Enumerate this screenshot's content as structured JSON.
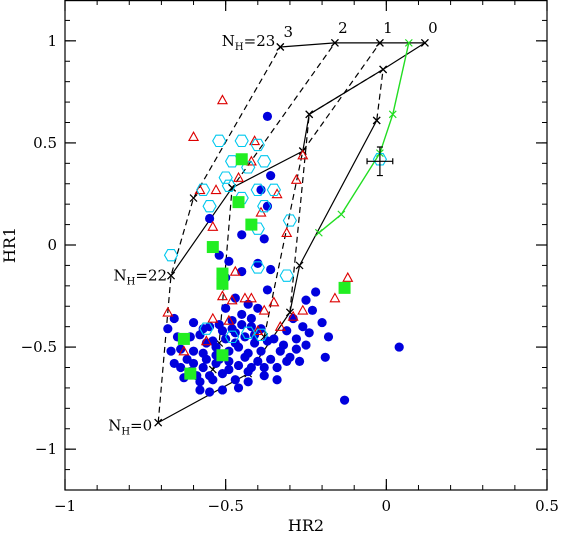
{
  "chart_data": {
    "type": "scatter",
    "xlabel": "HR2",
    "ylabel": "HR1",
    "xlim": [
      -1,
      0.5
    ],
    "ylim": [
      -1.2,
      1.2
    ],
    "xticks": [
      -1,
      -0.5,
      0,
      0.5
    ],
    "xtick_labels": [
      "−1",
      "−0.5",
      "0",
      "0.5"
    ],
    "yticks": [
      -1,
      -0.5,
      0,
      0.5,
      1
    ],
    "ytick_labels": [
      "−1",
      "−0.5",
      "0",
      "0.5",
      "1"
    ],
    "grid": false,
    "grid_annotations": {
      "nh_low": {
        "text": "N",
        "sub": "H",
        "value": "=0",
        "at": [
          -0.71,
          -0.87
        ]
      },
      "nh_mid": {
        "text": "N",
        "sub": "H",
        "value": "=22",
        "at": [
          -0.67,
          -0.15
        ]
      },
      "nh_high": {
        "text": "N",
        "sub": "H",
        "value": "=23",
        "at": [
          -0.33,
          0.97
        ]
      },
      "gamma_labels": [
        {
          "text": "3",
          "at": [
            -0.33,
            0.97
          ]
        },
        {
          "text": "2",
          "at": [
            -0.16,
            0.99
          ]
        },
        {
          "text": "1",
          "at": [
            -0.02,
            0.99
          ]
        },
        {
          "text": "0",
          "at": [
            0.12,
            0.99
          ]
        }
      ]
    },
    "solid_tracks": [
      [
        [
          -0.71,
          -0.87
        ],
        [
          -0.43,
          -0.63
        ],
        [
          -0.3,
          -0.33
        ],
        [
          -0.27,
          -0.1
        ],
        [
          -0.03,
          0.61
        ]
      ],
      [
        [
          -0.67,
          -0.15
        ],
        [
          -0.48,
          0.28
        ],
        [
          -0.26,
          0.46
        ],
        [
          -0.24,
          0.64
        ],
        [
          -0.01,
          0.86
        ],
        [
          0.12,
          0.99
        ]
      ]
    ],
    "dashed_tracks": [
      [
        [
          -0.71,
          -0.87
        ],
        [
          -0.67,
          -0.15
        ],
        [
          -0.6,
          0.23
        ],
        [
          -0.33,
          0.97
        ]
      ],
      [
        [
          -0.54,
          -0.61
        ],
        [
          -0.52,
          -0.48
        ],
        [
          -0.48,
          0.28
        ],
        [
          -0.16,
          0.99
        ]
      ],
      [
        [
          -0.38,
          -0.45
        ],
        [
          -0.26,
          0.46
        ],
        [
          -0.02,
          0.99
        ]
      ],
      [
        [
          -0.3,
          -0.33
        ],
        [
          -0.24,
          0.64
        ],
        [
          -0.01,
          0.86
        ],
        [
          -0.03,
          0.61
        ]
      ]
    ],
    "solid_track_top": [
      [
        -0.33,
        0.97
      ],
      [
        -0.16,
        0.99
      ],
      [
        -0.02,
        0.99
      ],
      [
        0.12,
        0.99
      ]
    ],
    "green_track": [
      [
        -0.21,
        0.06
      ],
      [
        -0.14,
        0.15
      ],
      [
        -0.02,
        0.45
      ],
      [
        0.02,
        0.64
      ],
      [
        0.07,
        0.99
      ]
    ],
    "error_point": {
      "x": -0.02,
      "y": 0.41,
      "xerr": 0.04,
      "yerr": 0.07
    },
    "series": [
      {
        "marker": "filled-circle",
        "color": "#0000dd",
        "points": [
          [
            -0.59,
            -0.64
          ],
          [
            -0.57,
            -0.6
          ],
          [
            -0.53,
            -0.58
          ],
          [
            -0.49,
            -0.57
          ],
          [
            -0.46,
            -0.59
          ],
          [
            -0.43,
            -0.62
          ],
          [
            -0.62,
            -0.56
          ],
          [
            -0.6,
            -0.52
          ],
          [
            -0.56,
            -0.48
          ],
          [
            -0.53,
            -0.5
          ],
          [
            -0.5,
            -0.46
          ],
          [
            -0.47,
            -0.43
          ],
          [
            -0.44,
            -0.45
          ],
          [
            -0.41,
            -0.48
          ],
          [
            -0.39,
            -0.52
          ],
          [
            -0.36,
            -0.56
          ],
          [
            -0.58,
            -0.44
          ],
          [
            -0.55,
            -0.4
          ],
          [
            -0.52,
            -0.39
          ],
          [
            -0.48,
            -0.37
          ],
          [
            -0.45,
            -0.34
          ],
          [
            -0.42,
            -0.36
          ],
          [
            -0.39,
            -0.41
          ],
          [
            -0.35,
            -0.46
          ],
          [
            -0.32,
            -0.49
          ],
          [
            -0.61,
            -0.45
          ],
          [
            -0.64,
            -0.51
          ],
          [
            -0.66,
            -0.58
          ],
          [
            -0.63,
            -0.65
          ],
          [
            -0.58,
            -0.67
          ],
          [
            -0.54,
            -0.66
          ],
          [
            -0.51,
            -0.63
          ],
          [
            -0.47,
            -0.66
          ],
          [
            -0.43,
            -0.67
          ],
          [
            -0.38,
            -0.64
          ],
          [
            -0.34,
            -0.6
          ],
          [
            -0.3,
            -0.55
          ],
          [
            -0.28,
            -0.46
          ],
          [
            -0.26,
            -0.4
          ],
          [
            -0.23,
            -0.32
          ],
          [
            -0.22,
            -0.23
          ],
          [
            -0.25,
            -0.27
          ],
          [
            -0.29,
            -0.36
          ],
          [
            -0.31,
            -0.42
          ],
          [
            -0.56,
            -0.56
          ],
          [
            -0.53,
            -0.54
          ],
          [
            -0.49,
            -0.52
          ],
          [
            -0.46,
            -0.5
          ],
          [
            -0.43,
            -0.53
          ],
          [
            -0.4,
            -0.57
          ],
          [
            -0.38,
            -0.6
          ],
          [
            -0.68,
            -0.41
          ],
          [
            -0.66,
            -0.36
          ],
          [
            -0.6,
            -0.38
          ],
          [
            -0.5,
            -0.31
          ],
          [
            -0.47,
            -0.26
          ],
          [
            -0.43,
            -0.29
          ],
          [
            -0.4,
            -0.31
          ],
          [
            -0.37,
            -0.22
          ],
          [
            -0.36,
            -0.12
          ],
          [
            -0.4,
            -0.09
          ],
          [
            -0.45,
            -0.13
          ],
          [
            -0.5,
            -0.16
          ],
          [
            -0.38,
            0.03
          ],
          [
            -0.37,
            0.19
          ],
          [
            -0.39,
            0.27
          ],
          [
            -0.36,
            0.34
          ],
          [
            -0.37,
            0.63
          ],
          [
            -0.55,
            0.13
          ],
          [
            -0.52,
            -0.05
          ],
          [
            -0.49,
            -0.08
          ],
          [
            -0.45,
            0.05
          ],
          [
            -0.58,
            -0.71
          ],
          [
            -0.55,
            -0.72
          ],
          [
            -0.51,
            -0.71
          ],
          [
            -0.46,
            -0.7
          ],
          [
            -0.34,
            -0.66
          ],
          [
            -0.27,
            -0.57
          ],
          [
            -0.19,
            -0.55
          ],
          [
            -0.18,
            -0.45
          ],
          [
            -0.2,
            -0.38
          ],
          [
            -0.13,
            -0.76
          ],
          [
            0.04,
            -0.5
          ],
          [
            -0.61,
            -0.62
          ],
          [
            -0.64,
            -0.6
          ],
          [
            -0.67,
            -0.52
          ],
          [
            -0.65,
            -0.45
          ],
          [
            -0.57,
            -0.41
          ],
          [
            -0.54,
            -0.47
          ],
          [
            -0.51,
            -0.42
          ],
          [
            -0.48,
            -0.41
          ],
          [
            -0.45,
            -0.39
          ],
          [
            -0.42,
            -0.4
          ],
          [
            -0.41,
            -0.44
          ],
          [
            -0.37,
            -0.47
          ],
          [
            -0.33,
            -0.52
          ],
          [
            -0.31,
            -0.57
          ],
          [
            -0.28,
            -0.51
          ],
          [
            -0.25,
            -0.49
          ],
          [
            -0.24,
            -0.43
          ],
          [
            -0.55,
            -0.64
          ],
          [
            -0.49,
            -0.61
          ],
          [
            -0.44,
            -0.55
          ],
          [
            -0.42,
            -0.6
          ],
          [
            -0.47,
            -0.48
          ],
          [
            -0.52,
            -0.56
          ],
          [
            -0.57,
            -0.53
          ],
          [
            -0.6,
            -0.58
          ]
        ]
      },
      {
        "marker": "open-triangle",
        "color": "#dd0000",
        "points": [
          [
            -0.51,
            0.71
          ],
          [
            -0.6,
            0.53
          ],
          [
            -0.41,
            0.51
          ],
          [
            -0.26,
            0.44
          ],
          [
            -0.58,
            0.27
          ],
          [
            -0.53,
            0.27
          ],
          [
            -0.42,
            0.41
          ],
          [
            -0.46,
            0.33
          ],
          [
            -0.39,
            0.16
          ],
          [
            -0.31,
            0.06
          ],
          [
            -0.54,
            0.09
          ],
          [
            -0.47,
            -0.13
          ],
          [
            -0.44,
            -0.26
          ],
          [
            -0.51,
            -0.25
          ],
          [
            -0.48,
            -0.27
          ],
          [
            -0.42,
            -0.26
          ],
          [
            -0.38,
            -0.32
          ],
          [
            -0.35,
            -0.28
          ],
          [
            -0.26,
            -0.32
          ],
          [
            -0.16,
            -0.26
          ],
          [
            -0.12,
            -0.16
          ],
          [
            -0.68,
            -0.33
          ],
          [
            -0.63,
            -0.52
          ],
          [
            -0.56,
            -0.47
          ],
          [
            -0.54,
            -0.36
          ],
          [
            -0.49,
            -0.37
          ],
          [
            -0.4,
            -0.42
          ],
          [
            -0.33,
            -0.4
          ],
          [
            -0.29,
            -0.35
          ],
          [
            -0.34,
            0.25
          ],
          [
            -0.28,
            0.32
          ]
        ]
      },
      {
        "marker": "open-hexagon",
        "color": "#00c8ee",
        "points": [
          [
            -0.52,
            0.51
          ],
          [
            -0.45,
            0.51
          ],
          [
            -0.4,
            0.49
          ],
          [
            -0.38,
            0.41
          ],
          [
            -0.48,
            0.41
          ],
          [
            -0.43,
            0.38
          ],
          [
            -0.5,
            0.33
          ],
          [
            -0.49,
            0.29
          ],
          [
            -0.45,
            0.23
          ],
          [
            -0.4,
            0.27
          ],
          [
            -0.35,
            0.27
          ],
          [
            -0.57,
            0.27
          ],
          [
            -0.55,
            0.19
          ],
          [
            -0.38,
            0.19
          ],
          [
            -0.3,
            0.12
          ],
          [
            -0.4,
            0.08
          ],
          [
            -0.67,
            -0.05
          ],
          [
            -0.4,
            -0.11
          ],
          [
            -0.31,
            -0.15
          ],
          [
            -0.56,
            -0.41
          ],
          [
            -0.48,
            -0.45
          ],
          [
            -0.43,
            -0.43
          ],
          [
            -0.39,
            -0.44
          ],
          [
            -0.02,
            0.42
          ]
        ]
      },
      {
        "marker": "filled-square",
        "color": "#22ee22",
        "points": [
          [
            -0.45,
            0.42
          ],
          [
            -0.46,
            0.21
          ],
          [
            -0.42,
            0.1
          ],
          [
            -0.54,
            -0.01
          ],
          [
            -0.51,
            -0.14
          ],
          [
            -0.51,
            -0.19
          ],
          [
            -0.13,
            -0.21
          ],
          [
            -0.63,
            -0.46
          ],
          [
            -0.51,
            -0.54
          ],
          [
            -0.61,
            -0.63
          ]
        ]
      }
    ]
  }
}
